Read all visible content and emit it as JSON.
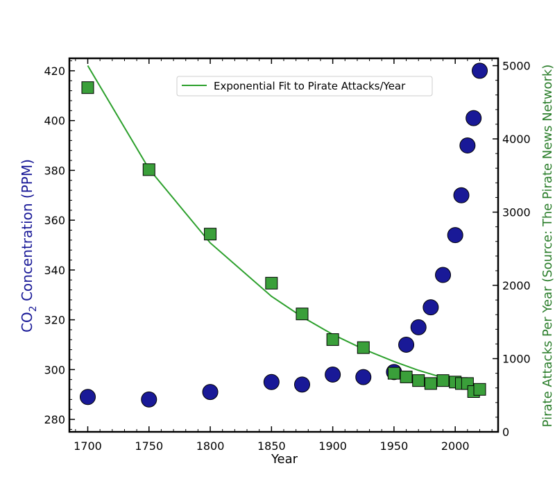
{
  "chart_data": {
    "type": "scatter",
    "xlabel": "Year",
    "ylabel_left_prefix": "CO",
    "ylabel_left_subscript": "2",
    "ylabel_left_suffix": " Concentration (PPM)",
    "ylabel_right": "Pirate Attacks Per Year (Source: The Pirate News Network)",
    "xlim": [
      1685,
      2035
    ],
    "ylim_left": [
      275,
      425
    ],
    "ylim_right": [
      0,
      5100
    ],
    "xticks": [
      1700,
      1750,
      1800,
      1850,
      1900,
      1950,
      2000
    ],
    "yticks_left": [
      280,
      300,
      320,
      340,
      360,
      380,
      400,
      420
    ],
    "yticks_right": [
      0,
      1000,
      2000,
      3000,
      4000,
      5000
    ],
    "legend_position": "upper-center",
    "legend_label": "Exponential Fit to Pirate Attacks/Year",
    "colors": {
      "co2": "#191997",
      "pirates": "#3a9f3a",
      "fit": "#2ca02c",
      "label_left": "#191997",
      "label_right": "#2a7d2a"
    },
    "series": [
      {
        "key": "co2",
        "axis": "left",
        "marker": "circle",
        "x": [
          1700,
          1750,
          1800,
          1850,
          1875,
          1900,
          1925,
          1950,
          1960,
          1970,
          1980,
          1990,
          2000,
          2005,
          2010,
          2015,
          2020
        ],
        "y": [
          289,
          288,
          291,
          295,
          294,
          298,
          297,
          299,
          310,
          317,
          325,
          338,
          354,
          370,
          390,
          401,
          420
        ]
      },
      {
        "key": "pirates",
        "axis": "right",
        "marker": "square",
        "x": [
          1700,
          1750,
          1800,
          1850,
          1875,
          1900,
          1925,
          1950,
          1960,
          1970,
          1980,
          1990,
          2000,
          2005,
          2010,
          2015,
          2020
        ],
        "y": [
          4700,
          3580,
          2700,
          2030,
          1610,
          1260,
          1150,
          800,
          750,
          700,
          660,
          700,
          680,
          660,
          660,
          550,
          580
        ]
      },
      {
        "key": "fit",
        "axis": "right",
        "marker": "line",
        "x": [
          1700,
          1750,
          1800,
          1850,
          1875,
          1900,
          1925,
          1950,
          1960,
          1970,
          1980,
          1990,
          2000,
          2005,
          2010,
          2015,
          2020
        ],
        "y": [
          5000,
          3590,
          2580,
          1850,
          1570,
          1330,
          1130,
          960,
          900,
          840,
          790,
          740,
          690,
          670,
          650,
          630,
          610
        ]
      }
    ]
  }
}
